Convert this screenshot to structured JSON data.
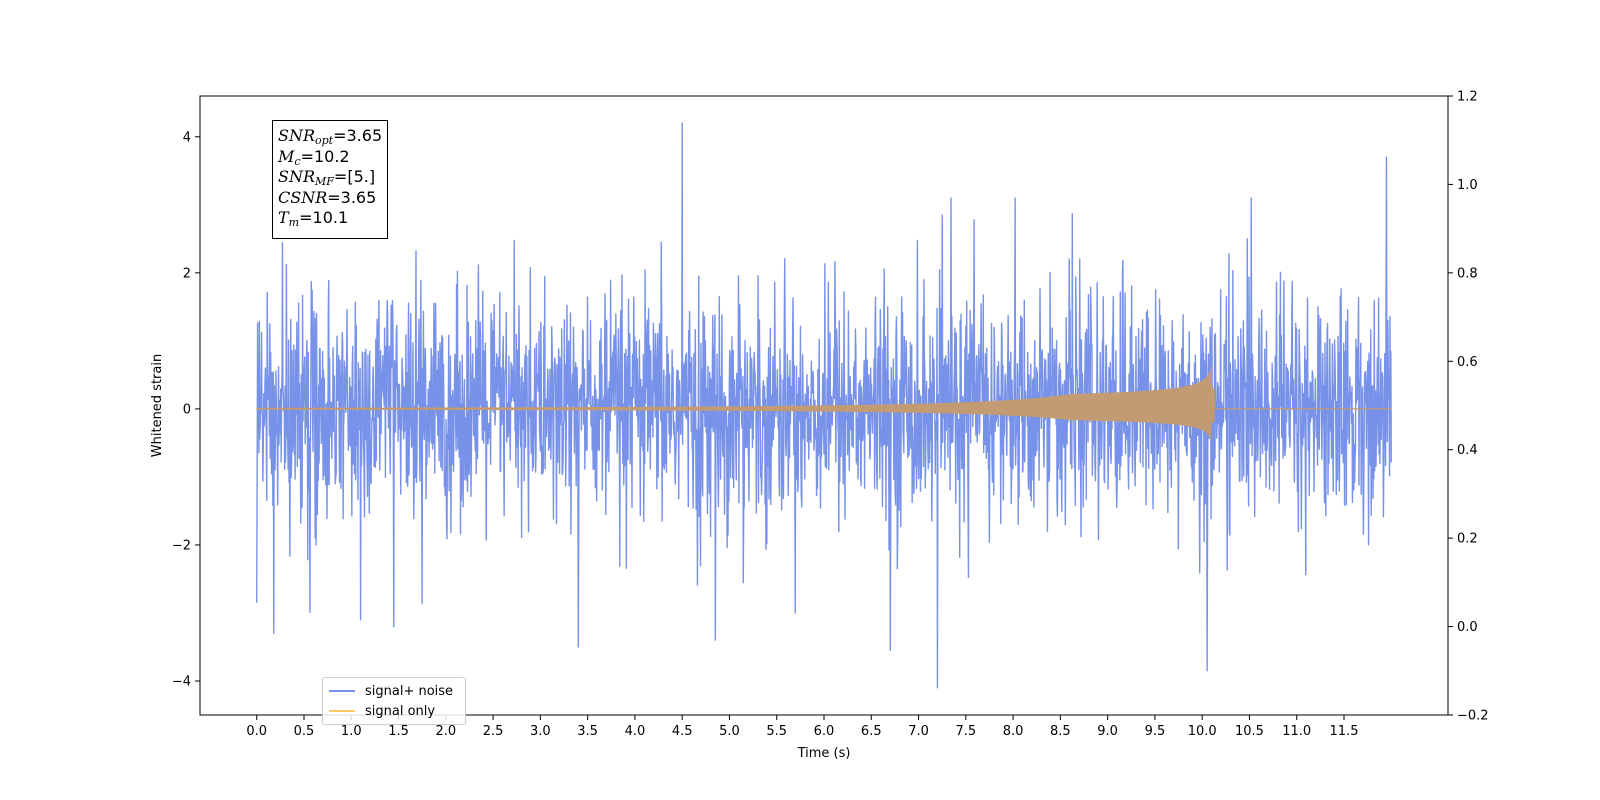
{
  "chart_data": {
    "type": "line",
    "xlabel": "Time (s)",
    "ylabel": "Whitened strain",
    "xlim": [
      -0.6,
      12.6
    ],
    "ylim": [
      -4.5,
      4.6
    ],
    "y2lim": [
      -0.2,
      1.2
    ],
    "x_ticks": [
      "0.0",
      "0.5",
      "1.0",
      "1.5",
      "2.0",
      "2.5",
      "3.0",
      "3.5",
      "4.0",
      "4.5",
      "5.0",
      "5.5",
      "6.0",
      "6.5",
      "7.0",
      "7.5",
      "8.0",
      "8.5",
      "9.0",
      "9.5",
      "10.0",
      "10.5",
      "11.0",
      "11.5"
    ],
    "y_ticks": [
      "4",
      "2",
      "0",
      "−2",
      "−4"
    ],
    "y2_ticks": [
      "1.2",
      "1.0",
      "0.8",
      "0.6",
      "0.4",
      "0.2",
      "0.0",
      "−0.2"
    ],
    "series": [
      {
        "name": "signal+ noise",
        "color": "#7792e8",
        "x_range": [
          0.0,
          12.0
        ],
        "description_values": {
          "envelope_typical": [
            -1.9,
            2.0
          ]
        },
        "peaks": [
          {
            "x": 0.0,
            "y": -2.85
          },
          {
            "x": 0.18,
            "y": -3.3
          },
          {
            "x": 1.1,
            "y": -3.1
          },
          {
            "x": 1.45,
            "y": -3.2
          },
          {
            "x": 3.4,
            "y": -3.5
          },
          {
            "x": 4.5,
            "y": 4.2
          },
          {
            "x": 4.85,
            "y": -3.4
          },
          {
            "x": 6.7,
            "y": -3.55
          },
          {
            "x": 7.2,
            "y": -4.1
          },
          {
            "x": 7.25,
            "y": 2.85
          },
          {
            "x": 10.05,
            "y": -3.85
          },
          {
            "x": 11.95,
            "y": 3.7
          }
        ]
      },
      {
        "name": "signal only",
        "color": "#ffc966",
        "x_range": [
          0.0,
          12.0
        ],
        "merger_time": 10.1,
        "peak_amplitude": 0.65
      }
    ],
    "legend_position": "lower left"
  },
  "annotation": {
    "snr_opt": {
      "var": "SNR",
      "sub": "opt",
      "value": "=3.65"
    },
    "mc": {
      "var": "M",
      "sub": "c",
      "value": "=10.2"
    },
    "snr_mf": {
      "var": "SNR",
      "sub": "MF",
      "value": "=[5.]"
    },
    "csnr": {
      "var": "CSNR",
      "value": "=3.65"
    },
    "tm": {
      "var": "T",
      "sub": "m",
      "value": "=10.1"
    }
  },
  "legend": {
    "noise_label": "signal+ noise",
    "signal_label": "signal only",
    "noise_color": "#7792e8",
    "signal_color": "#ffc966"
  }
}
